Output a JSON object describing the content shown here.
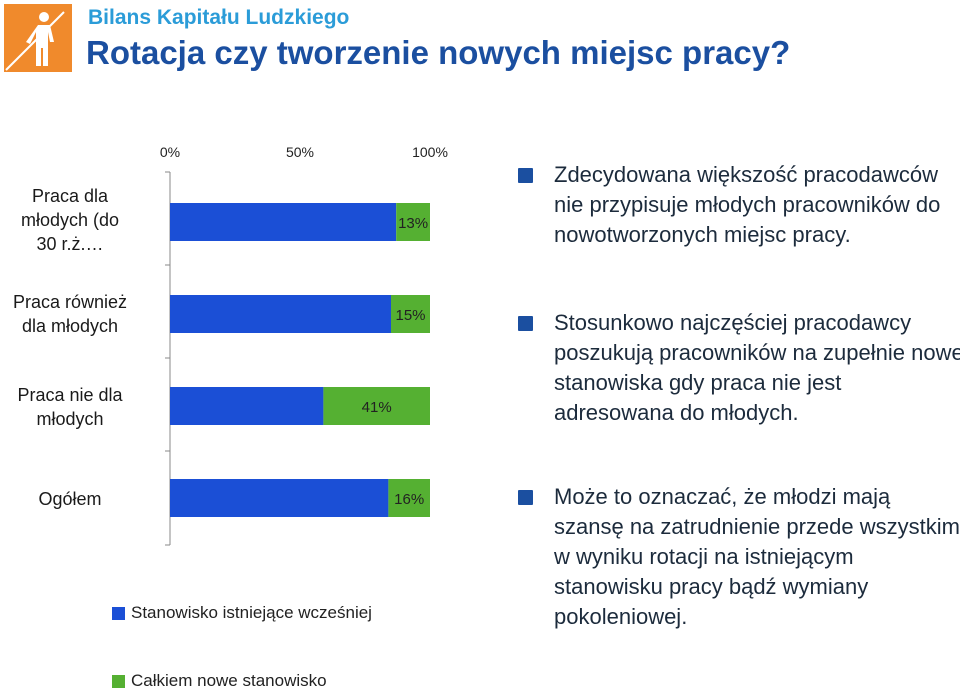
{
  "header": {
    "brand": "Bilans Kapitału Ludzkiego",
    "title": "Rotacja czy tworzenie nowych miejsc pracy?"
  },
  "colors": {
    "existing": "#1b4fd6",
    "new": "#55b032",
    "brand": "#2b9cd8",
    "title": "#1b4fa0",
    "logo_bg": "#f08a2c"
  },
  "chart_data": {
    "type": "bar",
    "orientation": "horizontal",
    "stacked": true,
    "categories": [
      "Praca dla młodych (do 30 r.ż.…",
      "Praca również dla młodych",
      "Praca nie dla młodych",
      "Ogółem"
    ],
    "series": [
      {
        "name": "Stanowisko istniejące wcześniej",
        "values": [
          87,
          85,
          59,
          84
        ]
      },
      {
        "name": "Całkiem nowe stanowisko",
        "values": [
          13,
          15,
          41,
          16
        ]
      }
    ],
    "data_labels": [
      "13%",
      "15%",
      "41%",
      "16%"
    ],
    "xlim": [
      0,
      100
    ],
    "xticks": [
      "0%",
      "50%",
      "100%"
    ],
    "xaxis_position": "top"
  },
  "chart_labels": {
    "cat0": [
      "Praca dla",
      "młodych (do",
      "30 r.ż.…"
    ],
    "cat1": [
      "Praca również",
      "dla młodych"
    ],
    "cat2": [
      "Praca nie dla",
      "młodych"
    ],
    "cat3": [
      "Ogółem"
    ]
  },
  "legend": {
    "existing": "Stanowisko istniejące wcześniej",
    "new": "Całkiem nowe stanowisko"
  },
  "bullets": [
    {
      "text": "Zdecydowana większość pracodawców nie przypisuje młodych pracowników do nowotworzonych miejsc pracy."
    },
    {
      "text": "Stosunkowo najczęściej pracodawcy poszukują pracowników na zupełnie nowe stanowiska gdy praca nie jest adresowana do młodych."
    },
    {
      "text": "Może to oznaczać, że młodzi mają szansę na zatrudnienie przede wszystkim w wyniku rotacji na istniejącym stanowisku pracy bądź wymiany pokoleniowej."
    }
  ]
}
